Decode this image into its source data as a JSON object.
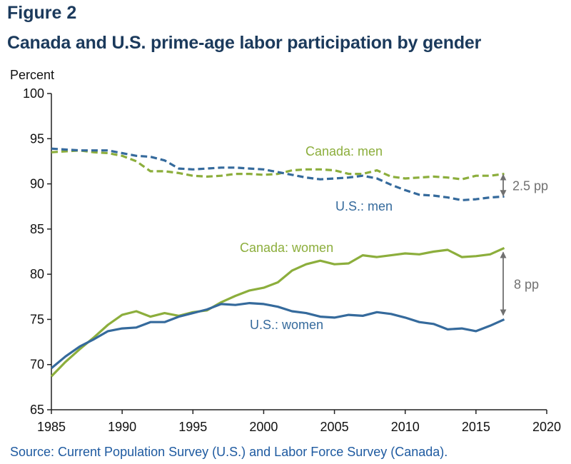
{
  "figure_label": "Figure 2",
  "title": "Canada and U.S. prime-age labor participation by gender",
  "source": "Source: Current Population Survey (U.S.) and Labor Force Survey (Canada).",
  "colors": {
    "title": "#1b3a5c",
    "us": "#356a9c",
    "canada": "#8cae3c",
    "gap": "#707070",
    "source": "#1e5aa0"
  },
  "chart_data": {
    "type": "line",
    "ylabel": "Percent",
    "xlabel": "",
    "xlim": [
      1985,
      2020
    ],
    "ylim": [
      65,
      100
    ],
    "xticks": [
      1985,
      1990,
      1995,
      2000,
      2005,
      2010,
      2015,
      2020
    ],
    "yticks": [
      65,
      70,
      75,
      80,
      85,
      90,
      95,
      100
    ],
    "grid": false,
    "x": [
      1985,
      1986,
      1987,
      1988,
      1989,
      1990,
      1991,
      1992,
      1993,
      1994,
      1995,
      1996,
      1997,
      1998,
      1999,
      2000,
      2001,
      2002,
      2003,
      2004,
      2005,
      2006,
      2007,
      2008,
      2009,
      2010,
      2011,
      2012,
      2013,
      2014,
      2015,
      2016,
      2017
    ],
    "series": [
      {
        "name": "Canada: men",
        "style": "dashed",
        "values": [
          93.5,
          93.6,
          93.7,
          93.5,
          93.4,
          93.1,
          92.5,
          91.4,
          91.4,
          91.2,
          90.9,
          90.8,
          90.9,
          91.1,
          91.1,
          91.0,
          91.1,
          91.5,
          91.6,
          91.6,
          91.5,
          91.1,
          91.1,
          91.5,
          90.8,
          90.6,
          90.7,
          90.8,
          90.7,
          90.5,
          90.9,
          90.9,
          91.1
        ]
      },
      {
        "name": "U.S.: men",
        "style": "dashed",
        "values": [
          93.9,
          93.8,
          93.7,
          93.7,
          93.7,
          93.4,
          93.1,
          93.0,
          92.6,
          91.7,
          91.6,
          91.7,
          91.8,
          91.8,
          91.7,
          91.6,
          91.3,
          91.0,
          90.7,
          90.5,
          90.6,
          90.7,
          90.9,
          90.6,
          89.9,
          89.3,
          88.8,
          88.7,
          88.5,
          88.2,
          88.3,
          88.5,
          88.6
        ]
      },
      {
        "name": "Canada: women",
        "style": "solid",
        "values": [
          68.7,
          70.3,
          71.7,
          73.0,
          74.4,
          75.5,
          75.9,
          75.3,
          75.7,
          75.4,
          75.8,
          76.0,
          76.9,
          77.6,
          78.2,
          78.5,
          79.1,
          80.4,
          81.1,
          81.5,
          81.1,
          81.2,
          82.1,
          81.9,
          82.1,
          82.3,
          82.2,
          82.5,
          82.7,
          81.9,
          82.0,
          82.2,
          82.9
        ]
      },
      {
        "name": "U.S.: women",
        "style": "solid",
        "values": [
          69.6,
          70.9,
          72.0,
          72.8,
          73.7,
          74.0,
          74.1,
          74.7,
          74.7,
          75.3,
          75.7,
          76.1,
          76.7,
          76.6,
          76.8,
          76.7,
          76.4,
          75.9,
          75.7,
          75.3,
          75.2,
          75.5,
          75.4,
          75.8,
          75.6,
          75.2,
          74.7,
          74.5,
          73.9,
          74.0,
          73.7,
          74.3,
          75.0
        ]
      }
    ],
    "annotations": [
      {
        "text": "Canada: men",
        "series": "Canada: men"
      },
      {
        "text": "U.S.: men",
        "series": "U.S.: men"
      },
      {
        "text": "Canada: women",
        "series": "Canada: women"
      },
      {
        "text": "U.S.: women",
        "series": "U.S.: women"
      },
      {
        "text": "2.5 pp",
        "type": "gap-arrow",
        "year": 2017,
        "from": 88.6,
        "to": 91.1
      },
      {
        "text": "8 pp",
        "type": "gap-arrow",
        "year": 2017,
        "from": 75.0,
        "to": 82.9
      }
    ]
  }
}
